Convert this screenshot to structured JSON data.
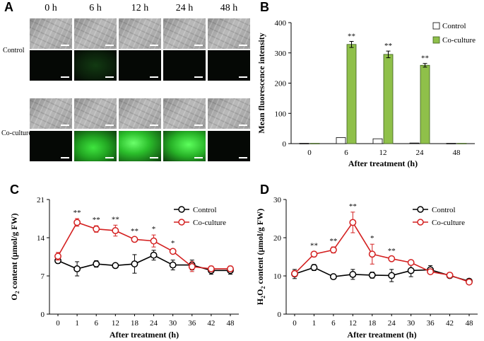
{
  "panel_a": {
    "letter": "A",
    "times": [
      "0 h",
      "6 h",
      "12 h",
      "24 h",
      "48 h"
    ],
    "rows": [
      "Control",
      "Co-culture"
    ]
  },
  "panel_b": {
    "letter": "B"
  },
  "panel_c": {
    "letter": "C"
  },
  "panel_d": {
    "letter": "D"
  },
  "chart_data": [
    {
      "id": "B",
      "type": "bar",
      "categories": [
        "0",
        "6",
        "12",
        "24",
        "48"
      ],
      "series": [
        {
          "name": "Control",
          "values": [
            1,
            20,
            16,
            2,
            1
          ],
          "errors": [
            0,
            0,
            0,
            0,
            0
          ],
          "color": "#ffffff"
        },
        {
          "name": "Co-culture",
          "values": [
            1,
            328,
            295,
            259,
            1
          ],
          "errors": [
            0,
            10,
            11,
            6,
            0
          ],
          "color": "#8fc04a"
        }
      ],
      "significance": [
        "",
        "**",
        "**",
        "**",
        ""
      ],
      "xlabel": "After treatment (h)",
      "ylabel": "Mean fluorescence intensity",
      "ylim": [
        0,
        400
      ],
      "yticks": [
        "0",
        "100",
        "200",
        "300",
        "400"
      ],
      "legend_position": "top-right"
    },
    {
      "id": "C",
      "type": "line",
      "x": [
        "0",
        "1",
        "6",
        "12",
        "18",
        "24",
        "30",
        "36",
        "42",
        "48"
      ],
      "series": [
        {
          "name": "Control",
          "values": [
            9.8,
            8.3,
            9.2,
            8.9,
            9.2,
            10.8,
            9.0,
            9.0,
            8.0,
            8.0
          ],
          "errors": [
            0.5,
            1.3,
            0.6,
            0.3,
            1.7,
            0.9,
            0.9,
            0.9,
            0.7,
            0.7
          ],
          "color": "#000000"
        },
        {
          "name": "Co-culture",
          "values": [
            10.6,
            16.8,
            15.6,
            15.3,
            13.7,
            13.4,
            11.5,
            8.7,
            8.3,
            8.3
          ],
          "errors": [
            0.7,
            0.7,
            0.6,
            1.0,
            0.4,
            1.1,
            0.4,
            0.9,
            0.5,
            0.5
          ],
          "color": "#d42020"
        }
      ],
      "significance": [
        "",
        "**",
        "**",
        "**",
        "**",
        "*",
        "*",
        "",
        "",
        ""
      ],
      "xlabel": "After treatment (h)",
      "ylabel_main": "O",
      "ylabel_sub": "2",
      "ylabel_rest": " content (μmol/g FW)",
      "ylim": [
        0,
        21
      ],
      "yticks": [
        "0",
        "7",
        "14",
        "21"
      ],
      "legend_position": "top-right"
    },
    {
      "id": "D",
      "type": "line",
      "x": [
        "0",
        "1",
        "6",
        "12",
        "18",
        "24",
        "30",
        "36",
        "42",
        "48"
      ],
      "series": [
        {
          "name": "Control",
          "values": [
            10.5,
            12.2,
            9.8,
            10.4,
            10.2,
            10.1,
            11.4,
            11.6,
            10.1,
            8.6
          ],
          "errors": [
            1.2,
            0.8,
            0.6,
            1.3,
            0.8,
            1.6,
            1.6,
            1.1,
            0.4,
            0.6
          ],
          "color": "#000000"
        },
        {
          "name": "Co-culture",
          "values": [
            10.6,
            15.7,
            16.8,
            24.0,
            15.7,
            14.5,
            13.5,
            11.1,
            10.2,
            8.4
          ],
          "errors": [
            0.8,
            0.7,
            0.8,
            2.7,
            2.6,
            0.5,
            0.4,
            0.5,
            0.4,
            0.5
          ],
          "color": "#d42020"
        }
      ],
      "significance": [
        "",
        "**",
        "**",
        "**",
        "*",
        "**",
        "",
        "",
        "",
        ""
      ],
      "xlabel": "After treatment (h)",
      "ylabel_main": "H",
      "ylabel_sub": "2",
      "ylabel_mid": "O",
      "ylabel_sub2": "2",
      "ylabel_rest": " content (μmol/g FW)",
      "ylim": [
        0,
        30
      ],
      "yticks": [
        "0",
        "10",
        "20",
        "30"
      ],
      "legend_position": "top-right"
    }
  ]
}
